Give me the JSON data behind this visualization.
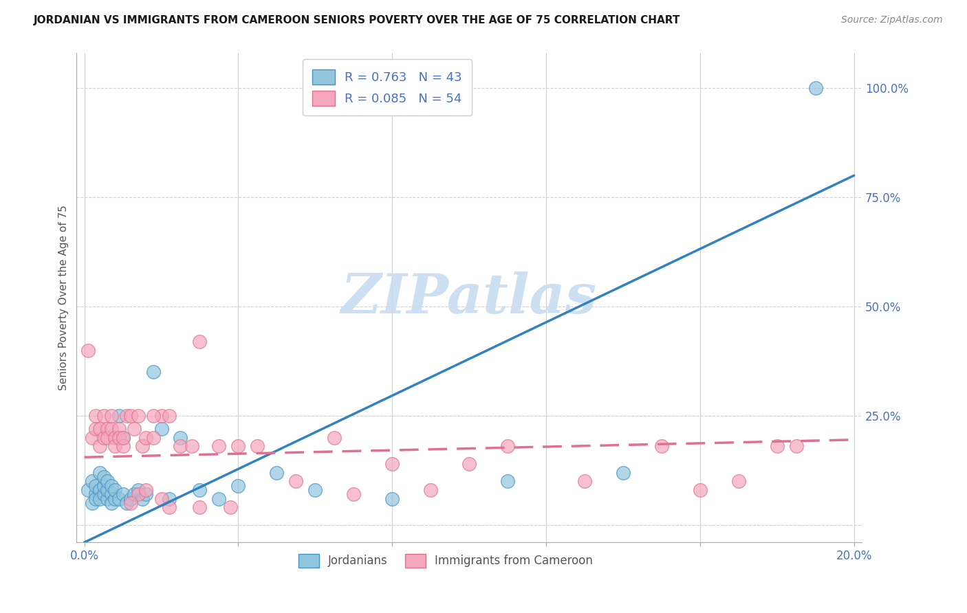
{
  "title": "JORDANIAN VS IMMIGRANTS FROM CAMEROON SENIORS POVERTY OVER THE AGE OF 75 CORRELATION CHART",
  "source": "Source: ZipAtlas.com",
  "ylabel": "Seniors Poverty Over the Age of 75",
  "legend_label1": "Jordanians",
  "legend_label2": "Immigrants from Cameroon",
  "R1": 0.763,
  "N1": 43,
  "R2": 0.085,
  "N2": 54,
  "blue_color": "#92c5de",
  "pink_color": "#f4a6bd",
  "blue_edge_color": "#4393c3",
  "pink_edge_color": "#e07090",
  "blue_line_color": "#3182bd",
  "pink_line_color": "#e07090",
  "watermark_text": "ZIPatlas",
  "watermark_color": "#c8ddf0",
  "blue_scatter_x": [
    0.001,
    0.002,
    0.002,
    0.003,
    0.003,
    0.003,
    0.004,
    0.004,
    0.004,
    0.005,
    0.005,
    0.005,
    0.006,
    0.006,
    0.006,
    0.007,
    0.007,
    0.007,
    0.008,
    0.008,
    0.009,
    0.009,
    0.01,
    0.01,
    0.011,
    0.012,
    0.013,
    0.014,
    0.015,
    0.016,
    0.018,
    0.02,
    0.022,
    0.025,
    0.03,
    0.035,
    0.04,
    0.05,
    0.06,
    0.08,
    0.11,
    0.14,
    0.19
  ],
  "blue_scatter_y": [
    0.08,
    0.05,
    0.1,
    0.07,
    0.09,
    0.06,
    0.08,
    0.12,
    0.06,
    0.07,
    0.09,
    0.11,
    0.06,
    0.08,
    0.1,
    0.07,
    0.09,
    0.05,
    0.06,
    0.08,
    0.25,
    0.06,
    0.07,
    0.2,
    0.05,
    0.06,
    0.07,
    0.08,
    0.06,
    0.07,
    0.35,
    0.22,
    0.06,
    0.2,
    0.08,
    0.06,
    0.09,
    0.12,
    0.08,
    0.06,
    0.1,
    0.12,
    1.0
  ],
  "pink_scatter_x": [
    0.001,
    0.002,
    0.003,
    0.003,
    0.004,
    0.004,
    0.005,
    0.005,
    0.006,
    0.006,
    0.007,
    0.007,
    0.008,
    0.008,
    0.009,
    0.009,
    0.01,
    0.01,
    0.011,
    0.012,
    0.013,
    0.014,
    0.015,
    0.016,
    0.018,
    0.02,
    0.022,
    0.025,
    0.028,
    0.03,
    0.035,
    0.04,
    0.045,
    0.055,
    0.065,
    0.07,
    0.08,
    0.09,
    0.1,
    0.11,
    0.13,
    0.15,
    0.16,
    0.17,
    0.18,
    0.185,
    0.014,
    0.018,
    0.022,
    0.03,
    0.038,
    0.012,
    0.016,
    0.02
  ],
  "pink_scatter_y": [
    0.4,
    0.2,
    0.22,
    0.25,
    0.18,
    0.22,
    0.2,
    0.25,
    0.22,
    0.2,
    0.22,
    0.25,
    0.2,
    0.18,
    0.22,
    0.2,
    0.18,
    0.2,
    0.25,
    0.25,
    0.22,
    0.07,
    0.18,
    0.2,
    0.2,
    0.25,
    0.25,
    0.18,
    0.18,
    0.42,
    0.18,
    0.18,
    0.18,
    0.1,
    0.2,
    0.07,
    0.14,
    0.08,
    0.14,
    0.18,
    0.1,
    0.18,
    0.08,
    0.1,
    0.18,
    0.18,
    0.25,
    0.25,
    0.04,
    0.04,
    0.04,
    0.05,
    0.08,
    0.06
  ],
  "xlim": [
    -0.002,
    0.202
  ],
  "ylim": [
    -0.04,
    1.08
  ],
  "x_tick_positions": [
    0.0,
    0.04,
    0.08,
    0.12,
    0.16,
    0.2
  ],
  "x_tick_labels": [
    "0.0%",
    "",
    "",
    "",
    "",
    "20.0%"
  ],
  "y_tick_positions": [
    0.0,
    0.25,
    0.5,
    0.75,
    1.0
  ],
  "y_tick_labels": [
    "",
    "25.0%",
    "50.0%",
    "75.0%",
    "100.0%"
  ],
  "blue_line_x": [
    0.0,
    0.2
  ],
  "blue_line_y": [
    -0.04,
    0.8
  ],
  "pink_line_x": [
    0.0,
    0.2
  ],
  "pink_line_y": [
    0.155,
    0.195
  ],
  "grid_color": "#d0d0d0",
  "title_fontsize": 11,
  "source_fontsize": 10,
  "tick_fontsize": 12,
  "legend_fontsize": 13
}
